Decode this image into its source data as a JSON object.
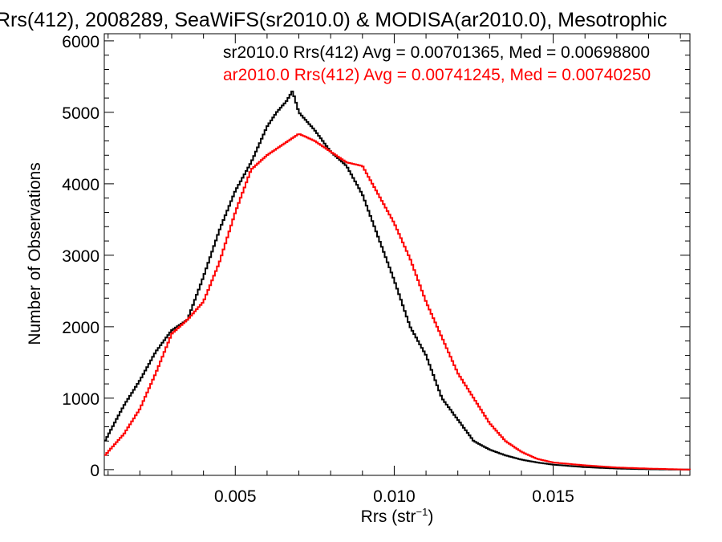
{
  "chart_data": {
    "type": "line",
    "step": true,
    "title": "Rrs(412), 2008289, SeaWiFS(sr2010.0) & MODISA(ar2010.0), Mesotrophic",
    "xlabel": "Rrs (str",
    "xlabel_sup": "−1",
    "xlabel_end": ")",
    "ylabel": "Number of Observations",
    "xlim": [
      0.00088,
      0.0193
    ],
    "ylim": [
      -80,
      6100
    ],
    "x_ticks": [
      0.005,
      0.01,
      0.015
    ],
    "x_tick_labels": [
      "0.005",
      "0.010",
      "0.015"
    ],
    "y_ticks": [
      0,
      1000,
      2000,
      3000,
      4000,
      5000,
      6000
    ],
    "y_tick_labels": [
      "0",
      "1000",
      "2000",
      "3000",
      "4000",
      "5000",
      "6000"
    ],
    "legend": [
      {
        "text": "sr2010.0 Rrs(412) Avg = 0.00701365, Med = 0.00698800",
        "color": "#000000"
      },
      {
        "text": "ar2010.0 Rrs(412) Avg = 0.00741245, Med = 0.00740250",
        "color": "#ff0000"
      }
    ],
    "series": [
      {
        "color": "#000000",
        "x": [
          0.0009,
          0.0015,
          0.002,
          0.0025,
          0.003,
          0.0035,
          0.004,
          0.0045,
          0.005,
          0.0055,
          0.006,
          0.0063,
          0.0066,
          0.0068,
          0.007,
          0.0075,
          0.008,
          0.0085,
          0.009,
          0.0095,
          0.01,
          0.0105,
          0.011,
          0.0115,
          0.012,
          0.0125,
          0.013,
          0.0135,
          0.014,
          0.0145,
          0.015,
          0.016,
          0.017,
          0.018,
          0.0193
        ],
        "y": [
          400,
          900,
          1250,
          1650,
          1950,
          2100,
          2700,
          3350,
          3900,
          4300,
          4800,
          5000,
          5150,
          5300,
          5000,
          4750,
          4450,
          4250,
          3850,
          3250,
          2650,
          2000,
          1600,
          1000,
          700,
          400,
          280,
          200,
          140,
          100,
          70,
          35,
          15,
          5,
          0
        ]
      },
      {
        "color": "#ff0000",
        "x": [
          0.0009,
          0.0015,
          0.002,
          0.0025,
          0.003,
          0.0035,
          0.004,
          0.0045,
          0.005,
          0.0055,
          0.006,
          0.0065,
          0.007,
          0.0075,
          0.008,
          0.0085,
          0.009,
          0.0095,
          0.01,
          0.0105,
          0.011,
          0.0115,
          0.012,
          0.0125,
          0.013,
          0.0135,
          0.014,
          0.0145,
          0.015,
          0.016,
          0.017,
          0.018,
          0.0193
        ],
        "y": [
          200,
          500,
          850,
          1350,
          1900,
          2100,
          2350,
          2900,
          3600,
          4200,
          4400,
          4550,
          4700,
          4600,
          4450,
          4300,
          4250,
          3850,
          3450,
          2950,
          2350,
          1850,
          1350,
          1000,
          650,
          400,
          250,
          150,
          100,
          60,
          30,
          15,
          0
        ]
      }
    ]
  }
}
